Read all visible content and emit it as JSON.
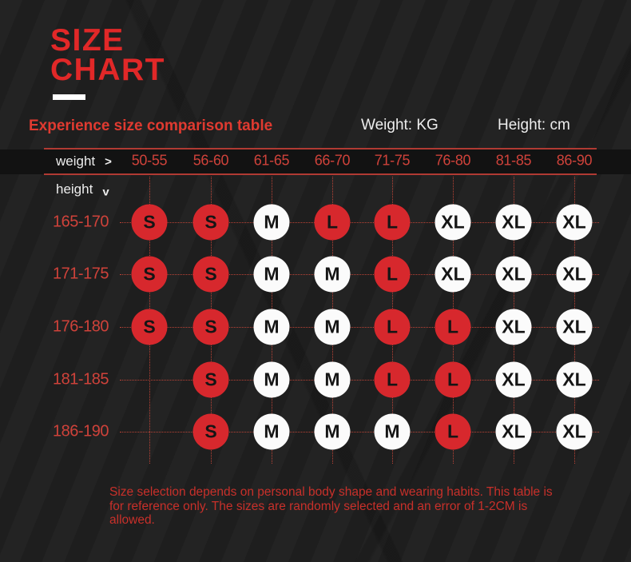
{
  "title": {
    "line1": "SIZE",
    "line2": "CHART"
  },
  "subtitle": {
    "text": "Experience size comparison table",
    "weight_unit": "Weight: KG",
    "height_unit": "Height: cm"
  },
  "axes": {
    "weight_label": "weight",
    "weight_arrow": ">",
    "height_label": "height",
    "height_arrow": "v"
  },
  "chart_data": {
    "type": "table",
    "title": "SIZE CHART",
    "subtitle": "Experience size comparison table",
    "xlabel": "weight (KG)",
    "ylabel": "height (cm)",
    "columns": [
      "50-55",
      "56-60",
      "61-65",
      "66-70",
      "71-75",
      "76-80",
      "81-85",
      "86-90"
    ],
    "rows": [
      {
        "label": "165-170",
        "cells": [
          {
            "size": "S",
            "highlight": "red"
          },
          {
            "size": "S",
            "highlight": "red"
          },
          {
            "size": "M",
            "highlight": "white"
          },
          {
            "size": "L",
            "highlight": "red"
          },
          {
            "size": "L",
            "highlight": "red"
          },
          {
            "size": "XL",
            "highlight": "white"
          },
          {
            "size": "XL",
            "highlight": "white"
          },
          {
            "size": "XL",
            "highlight": "white"
          }
        ]
      },
      {
        "label": "171-175",
        "cells": [
          {
            "size": "S",
            "highlight": "red"
          },
          {
            "size": "S",
            "highlight": "red"
          },
          {
            "size": "M",
            "highlight": "white"
          },
          {
            "size": "M",
            "highlight": "white"
          },
          {
            "size": "L",
            "highlight": "red"
          },
          {
            "size": "XL",
            "highlight": "white"
          },
          {
            "size": "XL",
            "highlight": "white"
          },
          {
            "size": "XL",
            "highlight": "white"
          }
        ]
      },
      {
        "label": "176-180",
        "cells": [
          {
            "size": "S",
            "highlight": "red"
          },
          {
            "size": "S",
            "highlight": "red"
          },
          {
            "size": "M",
            "highlight": "white"
          },
          {
            "size": "M",
            "highlight": "white"
          },
          {
            "size": "L",
            "highlight": "red"
          },
          {
            "size": "L",
            "highlight": "red"
          },
          {
            "size": "XL",
            "highlight": "white"
          },
          {
            "size": "XL",
            "highlight": "white"
          }
        ]
      },
      {
        "label": "181-185",
        "cells": [
          null,
          {
            "size": "S",
            "highlight": "red"
          },
          {
            "size": "M",
            "highlight": "white"
          },
          {
            "size": "M",
            "highlight": "white"
          },
          {
            "size": "L",
            "highlight": "red"
          },
          {
            "size": "L",
            "highlight": "red"
          },
          {
            "size": "XL",
            "highlight": "white"
          },
          {
            "size": "XL",
            "highlight": "white"
          }
        ]
      },
      {
        "label": "186-190",
        "cells": [
          null,
          {
            "size": "S",
            "highlight": "red"
          },
          {
            "size": "M",
            "highlight": "white"
          },
          {
            "size": "M",
            "highlight": "white"
          },
          {
            "size": "M",
            "highlight": "white"
          },
          {
            "size": "L",
            "highlight": "red"
          },
          {
            "size": "XL",
            "highlight": "white"
          },
          {
            "size": "XL",
            "highlight": "white"
          }
        ]
      }
    ]
  },
  "footnote": "Size selection depends on personal body shape and wearing habits. This table is for reference only. The sizes are randomly selected and an error of 1-2CM is allowed.",
  "colors": {
    "accent_red": "#e12828",
    "label_red": "#cf423a",
    "line_red": "#b03a33",
    "circle_red": "#d7282d",
    "circle_white": "#fbfbfb",
    "footnote_red": "#c8302a",
    "text_white": "#ededed",
    "header_band": "#121212",
    "background": "#202020"
  }
}
